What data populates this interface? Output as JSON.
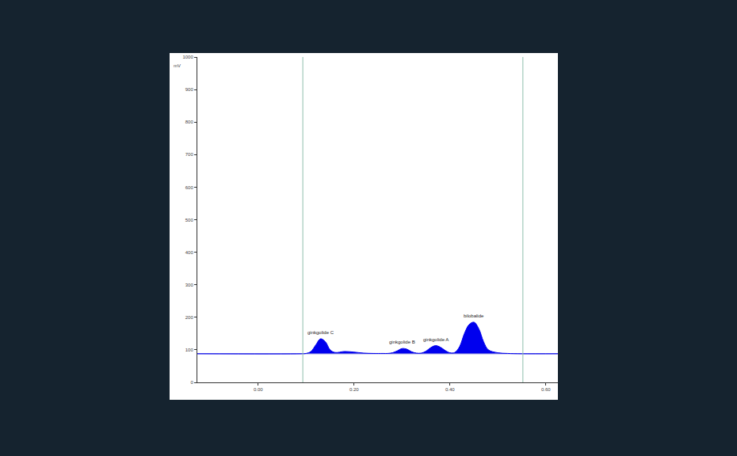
{
  "chart_data": {
    "type": "line",
    "y_unit": "mV",
    "x": [
      -0.127,
      0.09,
      0.1,
      0.11,
      0.12,
      0.13,
      0.14,
      0.15,
      0.16,
      0.18,
      0.2,
      0.22,
      0.24,
      0.26,
      0.27,
      0.28,
      0.29,
      0.3,
      0.31,
      0.32,
      0.33,
      0.34,
      0.35,
      0.36,
      0.37,
      0.38,
      0.39,
      0.4,
      0.41,
      0.42,
      0.43,
      0.44,
      0.45,
      0.46,
      0.47,
      0.48,
      0.5,
      0.52,
      0.55,
      0.625
    ],
    "values": [
      88,
      88,
      89,
      95,
      115,
      134,
      125,
      100,
      92,
      95,
      93,
      90,
      89,
      89,
      89,
      91,
      97,
      104,
      102,
      94,
      90,
      90,
      96,
      107,
      113,
      108,
      98,
      91,
      92,
      110,
      150,
      178,
      185,
      165,
      125,
      100,
      91,
      89,
      88,
      88
    ],
    "color": "#0000ee",
    "baseline": 88,
    "events": [
      0.093,
      0.552
    ],
    "peaks": [
      {
        "label": "ginkgolide C",
        "x": 0.13,
        "y": 134
      },
      {
        "label": "ginkgolide B",
        "x": 0.3,
        "y": 104
      },
      {
        "label": "ginkgolide A",
        "x": 0.37,
        "y": 113
      },
      {
        "label": "bilobalide",
        "x": 0.45,
        "y": 185
      }
    ],
    "xlim": [
      -0.127,
      0.625
    ],
    "xticks": [
      {
        "value": 0,
        "label": "0.00"
      },
      {
        "value": 0.2,
        "label": "0.20"
      },
      {
        "value": 0.4,
        "label": "0.40"
      },
      {
        "value": 0.6,
        "label": "0.60"
      }
    ],
    "ylim": [
      0,
      1000
    ],
    "yticks": [
      0,
      100,
      200,
      300,
      400,
      500,
      600,
      700,
      800,
      900,
      1000
    ],
    "grid": false
  }
}
